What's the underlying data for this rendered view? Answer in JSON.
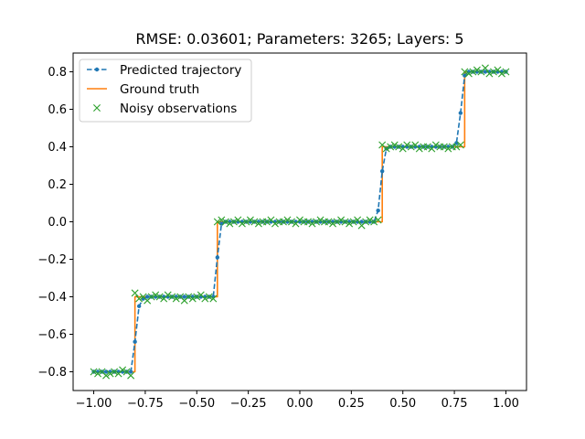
{
  "chart_data": {
    "type": "line",
    "title": "RMSE: 0.03601; Parameters: 3265; Layers: 5",
    "xlabel": "",
    "ylabel": "",
    "xlim": [
      -1.1,
      1.1
    ],
    "ylim": [
      -0.9,
      0.9
    ],
    "x_ticks": [
      -1.0,
      -0.75,
      -0.5,
      -0.25,
      0.0,
      0.25,
      0.5,
      0.75,
      1.0
    ],
    "x_tick_labels": [
      "−1.00",
      "−0.75",
      "−0.50",
      "−0.25",
      "0.00",
      "0.25",
      "0.50",
      "0.75",
      "1.00"
    ],
    "y_ticks": [
      -0.8,
      -0.6,
      -0.4,
      -0.2,
      0.0,
      0.2,
      0.4,
      0.6,
      0.8
    ],
    "y_tick_labels": [
      "−0.8",
      "−0.6",
      "−0.4",
      "−0.2",
      "0.0",
      "0.2",
      "0.4",
      "0.6",
      "0.8"
    ],
    "grid": false,
    "legend_position": "top-left",
    "colors": {
      "predicted": "#1f77b4",
      "ground_truth": "#ff7f0e",
      "observations": "#2ca02c"
    },
    "series": [
      {
        "name": "Predicted trajectory",
        "style": "dashed-line-with-dots",
        "x": [
          -1.0,
          -0.98,
          -0.96,
          -0.94,
          -0.92,
          -0.9,
          -0.88,
          -0.86,
          -0.84,
          -0.82,
          -0.8,
          -0.78,
          -0.76,
          -0.74,
          -0.72,
          -0.7,
          -0.68,
          -0.66,
          -0.64,
          -0.62,
          -0.6,
          -0.58,
          -0.56,
          -0.54,
          -0.52,
          -0.5,
          -0.48,
          -0.46,
          -0.44,
          -0.42,
          -0.4,
          -0.38,
          -0.36,
          -0.34,
          -0.32,
          -0.3,
          -0.28,
          -0.26,
          -0.24,
          -0.22,
          -0.2,
          -0.18,
          -0.16,
          -0.14,
          -0.12,
          -0.1,
          -0.08,
          -0.06,
          -0.04,
          -0.02,
          0.0,
          0.02,
          0.04,
          0.06,
          0.08,
          0.1,
          0.12,
          0.14,
          0.16,
          0.18,
          0.2,
          0.22,
          0.24,
          0.26,
          0.28,
          0.3,
          0.32,
          0.34,
          0.36,
          0.38,
          0.4,
          0.42,
          0.44,
          0.46,
          0.48,
          0.5,
          0.52,
          0.54,
          0.56,
          0.58,
          0.6,
          0.62,
          0.64,
          0.66,
          0.68,
          0.7,
          0.72,
          0.74,
          0.76,
          0.78,
          0.8,
          0.82,
          0.84,
          0.86,
          0.88,
          0.9,
          0.92,
          0.94,
          0.96,
          0.98,
          1.0
        ],
        "y": [
          -0.8,
          -0.8,
          -0.8,
          -0.8,
          -0.8,
          -0.8,
          -0.8,
          -0.8,
          -0.8,
          -0.8,
          -0.64,
          -0.45,
          -0.41,
          -0.4,
          -0.4,
          -0.4,
          -0.4,
          -0.4,
          -0.4,
          -0.4,
          -0.4,
          -0.4,
          -0.4,
          -0.4,
          -0.4,
          -0.4,
          -0.4,
          -0.4,
          -0.4,
          -0.4,
          -0.19,
          -0.01,
          0.0,
          0.0,
          0.0,
          0.0,
          0.0,
          0.0,
          0.0,
          0.0,
          0.0,
          0.0,
          0.0,
          0.0,
          0.0,
          0.0,
          0.0,
          0.0,
          0.0,
          0.0,
          0.0,
          0.0,
          0.0,
          0.0,
          0.0,
          0.0,
          0.0,
          0.0,
          0.0,
          0.0,
          0.0,
          0.0,
          0.0,
          0.0,
          0.0,
          0.0,
          0.0,
          0.0,
          0.0,
          0.06,
          0.27,
          0.39,
          0.4,
          0.4,
          0.4,
          0.4,
          0.4,
          0.4,
          0.4,
          0.4,
          0.4,
          0.4,
          0.4,
          0.4,
          0.4,
          0.4,
          0.4,
          0.4,
          0.42,
          0.58,
          0.78,
          0.8,
          0.8,
          0.8,
          0.8,
          0.8,
          0.8,
          0.8,
          0.8,
          0.8,
          0.8
        ]
      },
      {
        "name": "Ground truth",
        "style": "solid-line",
        "x": [
          -1.0,
          -0.8,
          -0.8,
          -0.4,
          -0.4,
          0.0,
          0.4,
          0.4,
          0.8,
          0.8,
          1.0
        ],
        "y": [
          -0.8,
          -0.8,
          -0.4,
          -0.4,
          0.0,
          0.0,
          0.0,
          0.4,
          0.4,
          0.8,
          0.8
        ]
      },
      {
        "name": "Noisy observations",
        "style": "x-markers",
        "x": [
          -1.0,
          -0.98,
          -0.96,
          -0.94,
          -0.92,
          -0.9,
          -0.88,
          -0.86,
          -0.84,
          -0.82,
          -0.8,
          -0.78,
          -0.76,
          -0.74,
          -0.72,
          -0.7,
          -0.68,
          -0.66,
          -0.64,
          -0.62,
          -0.6,
          -0.58,
          -0.56,
          -0.54,
          -0.52,
          -0.5,
          -0.48,
          -0.46,
          -0.44,
          -0.42,
          -0.4,
          -0.38,
          -0.36,
          -0.34,
          -0.32,
          -0.3,
          -0.28,
          -0.26,
          -0.24,
          -0.22,
          -0.2,
          -0.18,
          -0.16,
          -0.14,
          -0.12,
          -0.1,
          -0.08,
          -0.06,
          -0.04,
          -0.02,
          0.0,
          0.02,
          0.04,
          0.06,
          0.08,
          0.1,
          0.12,
          0.14,
          0.16,
          0.18,
          0.2,
          0.22,
          0.24,
          0.26,
          0.28,
          0.3,
          0.32,
          0.34,
          0.36,
          0.38,
          0.4,
          0.42,
          0.44,
          0.46,
          0.48,
          0.5,
          0.52,
          0.54,
          0.56,
          0.58,
          0.6,
          0.62,
          0.64,
          0.66,
          0.68,
          0.7,
          0.72,
          0.74,
          0.76,
          0.78,
          0.8,
          0.82,
          0.84,
          0.86,
          0.88,
          0.9,
          0.92,
          0.94,
          0.96,
          0.98,
          1.0
        ],
        "y": [
          -0.8,
          -0.81,
          -0.8,
          -0.82,
          -0.81,
          -0.8,
          -0.81,
          -0.79,
          -0.8,
          -0.82,
          -0.38,
          -0.41,
          -0.4,
          -0.42,
          -0.4,
          -0.39,
          -0.4,
          -0.41,
          -0.39,
          -0.4,
          -0.41,
          -0.4,
          -0.42,
          -0.4,
          -0.41,
          -0.4,
          -0.39,
          -0.41,
          -0.4,
          -0.41,
          0.0,
          0.01,
          0.0,
          -0.01,
          0.0,
          0.01,
          -0.01,
          0.0,
          0.01,
          0.0,
          -0.01,
          0.0,
          0.0,
          0.01,
          -0.01,
          0.0,
          0.0,
          0.01,
          0.0,
          -0.01,
          0.01,
          0.0,
          0.0,
          -0.01,
          0.0,
          0.01,
          0.0,
          0.0,
          -0.01,
          0.0,
          0.01,
          0.0,
          -0.01,
          0.0,
          0.01,
          -0.02,
          0.0,
          0.01,
          0.0,
          0.01,
          0.41,
          0.39,
          0.4,
          0.41,
          0.4,
          0.39,
          0.41,
          0.4,
          0.41,
          0.39,
          0.4,
          0.4,
          0.39,
          0.41,
          0.4,
          0.4,
          0.39,
          0.4,
          0.4,
          0.41,
          0.8,
          0.79,
          0.8,
          0.81,
          0.8,
          0.82,
          0.79,
          0.8,
          0.81,
          0.79,
          0.8
        ]
      }
    ]
  }
}
